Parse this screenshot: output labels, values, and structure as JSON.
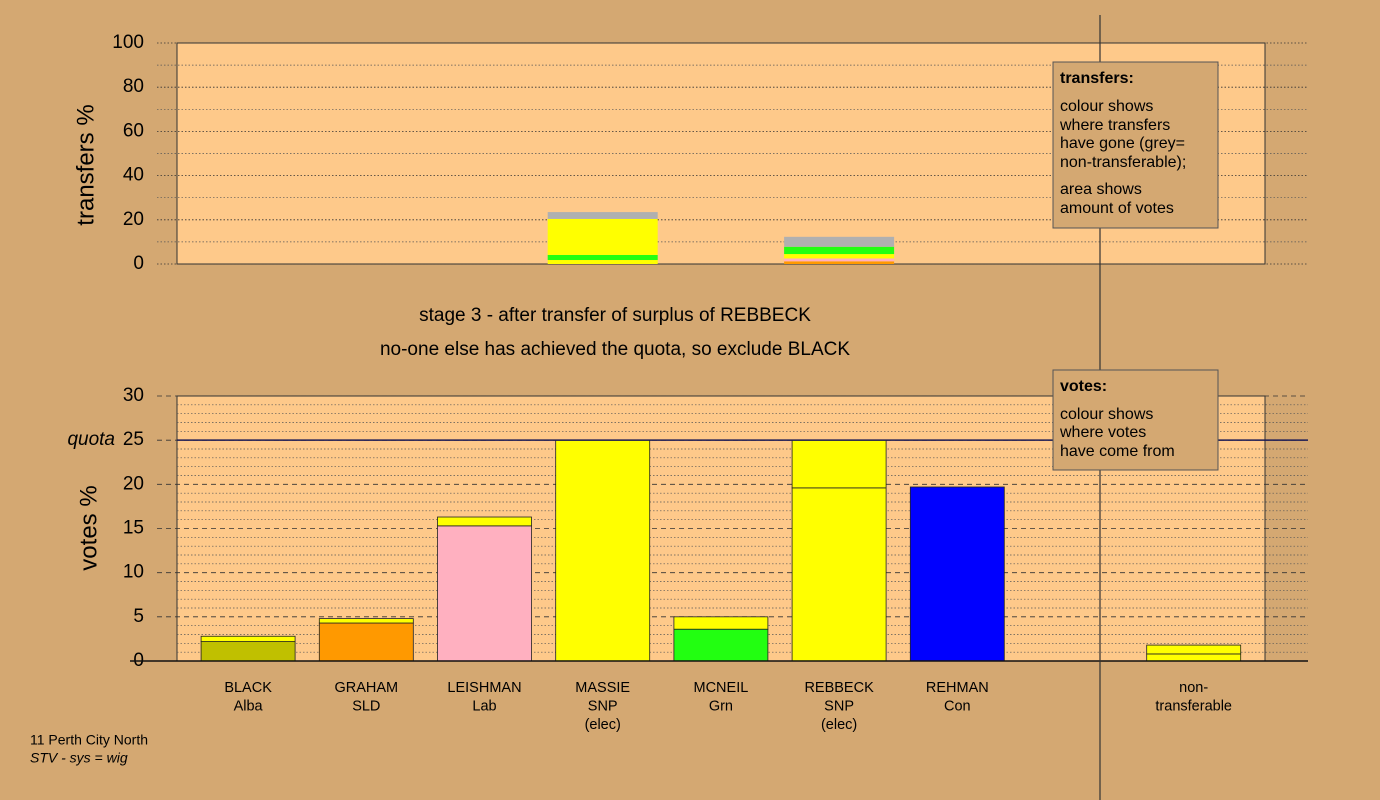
{
  "chart_data": [
    {
      "type": "bar",
      "stacked": true,
      "ylabel": "transfers %",
      "ylim": [
        0,
        100
      ],
      "yticks": [
        0,
        20,
        40,
        60,
        80,
        100
      ],
      "grid": true,
      "series": [
        {
          "color": "#ff9900",
          "values": [
            0,
            0,
            0,
            0,
            0,
            1.2,
            0,
            0,
            0
          ]
        },
        {
          "color": "#ffb0c0",
          "values": [
            0,
            0,
            0,
            0,
            0,
            1.3,
            0,
            0,
            0
          ]
        },
        {
          "color": "#ffff00",
          "values": [
            0,
            0,
            0,
            1.8,
            0,
            2.0,
            0,
            0,
            0
          ]
        },
        {
          "color": "#22ff11",
          "values": [
            0,
            0,
            0,
            2.3,
            0,
            3.3,
            0,
            0,
            0
          ]
        },
        {
          "color": "#ffff00",
          "values": [
            0,
            0,
            0,
            16.3,
            0,
            0,
            0,
            0,
            0
          ]
        },
        {
          "color": "#b0b0b0",
          "values": [
            0,
            0,
            0,
            3.1,
            0,
            4.5,
            0,
            0,
            0
          ]
        }
      ]
    },
    {
      "type": "bar",
      "stacked": true,
      "ylabel": "votes %",
      "ylim": [
        0,
        30
      ],
      "yticks": [
        0,
        5,
        10,
        15,
        20,
        25,
        30
      ],
      "grid": true,
      "quota": {
        "value": 25,
        "label": "quota"
      },
      "categories": [
        [
          "BLACK",
          "Alba"
        ],
        [
          "GRAHAM",
          "SLD"
        ],
        [
          "LEISHMAN",
          "Lab"
        ],
        [
          "MASSIE",
          "SNP",
          "(elec)"
        ],
        [
          "MCNEIL",
          "Grn"
        ],
        [
          "REBBECK",
          "SNP",
          "(elec)"
        ],
        [
          "REHMAN",
          "Con"
        ],
        null,
        [
          "non-",
          "transferable"
        ]
      ],
      "series": [
        {
          "color": "#c0c000",
          "values": [
            2.2,
            0,
            0,
            0,
            0,
            0,
            0,
            0,
            0
          ]
        },
        {
          "color": "#ff9900",
          "values": [
            0,
            4.3,
            0,
            0,
            0,
            0,
            0,
            0,
            0
          ]
        },
        {
          "color": "#ffb0c0",
          "values": [
            0,
            0,
            15.3,
            0,
            0,
            0,
            0,
            0,
            0
          ]
        },
        {
          "color": "#22ff11",
          "values": [
            0,
            0,
            0,
            0,
            3.6,
            0,
            0,
            0,
            0
          ]
        },
        {
          "color": "#0000ff",
          "values": [
            0,
            0,
            0,
            0,
            0,
            0,
            19.7,
            0,
            0
          ]
        },
        {
          "color": "#ffff00",
          "values": [
            0,
            0,
            0,
            25,
            0,
            19.6,
            0,
            0,
            0.8
          ]
        },
        {
          "color": "#ffff00",
          "values": [
            0.6,
            0.5,
            1.0,
            0,
            1.4,
            5.4,
            0,
            0,
            1.0
          ]
        }
      ]
    }
  ],
  "captions": [
    "stage 3 - after transfer of surplus of REBBECK",
    "no-one else has achieved the quota, so exclude BLACK"
  ],
  "transfers_note": {
    "title": "transfers:",
    "lines": [
      "colour shows",
      "where transfers",
      "have gone (grey=",
      "non-transferable);"
    ],
    "lines2": [
      "area shows",
      "amount of votes"
    ]
  },
  "votes_note": {
    "title": "votes:",
    "lines": [
      "colour shows",
      "where votes",
      "have come from"
    ]
  },
  "footer": {
    "place": "11 Perth City North",
    "system": "STV - sys = wig"
  }
}
